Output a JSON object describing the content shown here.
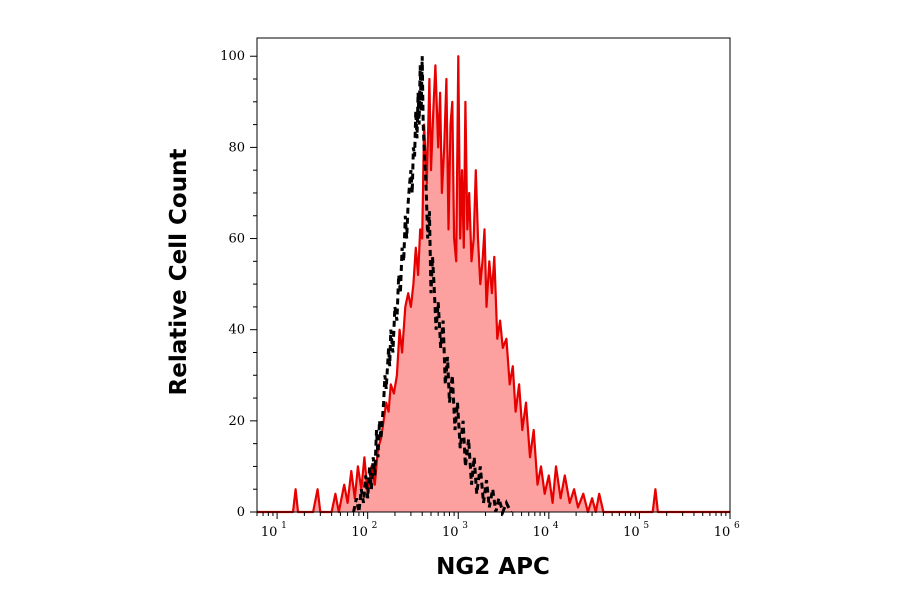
{
  "chart_data": {
    "type": "area",
    "xlabel": "NG2 APC",
    "ylabel": "Relative Cell Count",
    "xscale": "log",
    "xlim": [
      6,
      1000000
    ],
    "ylim": [
      0,
      104
    ],
    "x_ticks": [
      {
        "base": "10",
        "exp": "1",
        "value": 10
      },
      {
        "base": "10",
        "exp": "2",
        "value": 100
      },
      {
        "base": "10",
        "exp": "3",
        "value": 1000
      },
      {
        "base": "10",
        "exp": "4",
        "value": 10000
      },
      {
        "base": "10",
        "exp": "5",
        "value": 100000
      },
      {
        "base": "10",
        "exp": "6",
        "value": 1000000
      }
    ],
    "y_ticks": [
      "0",
      "20",
      "40",
      "60",
      "80",
      "100"
    ],
    "grid": false,
    "legend": "none",
    "series": [
      {
        "style": "filled-solid",
        "line_color": "#e60000",
        "fill_color": "#fca0a0",
        "points": [
          [
            6,
            0
          ],
          [
            12,
            0
          ],
          [
            15,
            0
          ],
          [
            16,
            5
          ],
          [
            17,
            0
          ],
          [
            25,
            0
          ],
          [
            28,
            5
          ],
          [
            30,
            0
          ],
          [
            40,
            0
          ],
          [
            44,
            4
          ],
          [
            48,
            0
          ],
          [
            55,
            6
          ],
          [
            60,
            2
          ],
          [
            66,
            9
          ],
          [
            72,
            3
          ],
          [
            78,
            10
          ],
          [
            85,
            5
          ],
          [
            92,
            12
          ],
          [
            100,
            4
          ],
          [
            110,
            10
          ],
          [
            120,
            6
          ],
          [
            130,
            14
          ],
          [
            140,
            16
          ],
          [
            150,
            20
          ],
          [
            160,
            24
          ],
          [
            170,
            22
          ],
          [
            180,
            28
          ],
          [
            195,
            26
          ],
          [
            210,
            30
          ],
          [
            225,
            40
          ],
          [
            240,
            35
          ],
          [
            260,
            45
          ],
          [
            280,
            48
          ],
          [
            300,
            45
          ],
          [
            320,
            50
          ],
          [
            340,
            58
          ],
          [
            360,
            52
          ],
          [
            380,
            62
          ],
          [
            400,
            60
          ],
          [
            420,
            85
          ],
          [
            450,
            72
          ],
          [
            480,
            95
          ],
          [
            500,
            75
          ],
          [
            530,
            88
          ],
          [
            560,
            98
          ],
          [
            600,
            80
          ],
          [
            630,
            92
          ],
          [
            660,
            70
          ],
          [
            700,
            80
          ],
          [
            740,
            95
          ],
          [
            780,
            62
          ],
          [
            820,
            85
          ],
          [
            860,
            90
          ],
          [
            900,
            60
          ],
          [
            950,
            55
          ],
          [
            1000,
            100
          ],
          [
            1050,
            60
          ],
          [
            1100,
            75
          ],
          [
            1150,
            58
          ],
          [
            1200,
            90
          ],
          [
            1260,
            62
          ],
          [
            1320,
            70
          ],
          [
            1400,
            55
          ],
          [
            1480,
            60
          ],
          [
            1560,
            75
          ],
          [
            1650,
            60
          ],
          [
            1750,
            50
          ],
          [
            1850,
            55
          ],
          [
            1950,
            62
          ],
          [
            2050,
            45
          ],
          [
            2200,
            55
          ],
          [
            2350,
            48
          ],
          [
            2500,
            56
          ],
          [
            2700,
            38
          ],
          [
            2900,
            42
          ],
          [
            3100,
            36
          ],
          [
            3400,
            38
          ],
          [
            3700,
            28
          ],
          [
            4000,
            32
          ],
          [
            4300,
            22
          ],
          [
            4700,
            28
          ],
          [
            5100,
            18
          ],
          [
            5600,
            24
          ],
          [
            6200,
            12
          ],
          [
            6800,
            18
          ],
          [
            7500,
            6
          ],
          [
            8200,
            10
          ],
          [
            9000,
            4
          ],
          [
            10000,
            8
          ],
          [
            11000,
            2
          ],
          [
            12000,
            10
          ],
          [
            13500,
            3
          ],
          [
            15000,
            8
          ],
          [
            17000,
            2
          ],
          [
            19000,
            5
          ],
          [
            21000,
            1
          ],
          [
            24000,
            4
          ],
          [
            27000,
            0
          ],
          [
            30000,
            3
          ],
          [
            33000,
            0
          ],
          [
            36000,
            4
          ],
          [
            40000,
            0
          ],
          [
            50000,
            0
          ],
          [
            140000,
            0
          ],
          [
            150000,
            5
          ],
          [
            160000,
            0
          ],
          [
            1000000,
            0
          ]
        ]
      },
      {
        "style": "dashed",
        "line_color": "#000000",
        "points": [
          [
            70,
            0
          ],
          [
            75,
            3
          ],
          [
            80,
            0
          ],
          [
            85,
            5
          ],
          [
            90,
            2
          ],
          [
            95,
            8
          ],
          [
            100,
            3
          ],
          [
            105,
            10
          ],
          [
            110,
            5
          ],
          [
            115,
            12
          ],
          [
            120,
            8
          ],
          [
            125,
            18
          ],
          [
            130,
            12
          ],
          [
            135,
            20
          ],
          [
            140,
            16
          ],
          [
            150,
            24
          ],
          [
            155,
            30
          ],
          [
            160,
            27
          ],
          [
            170,
            36
          ],
          [
            175,
            32
          ],
          [
            180,
            40
          ],
          [
            190,
            35
          ],
          [
            200,
            45
          ],
          [
            210,
            42
          ],
          [
            220,
            52
          ],
          [
            230,
            48
          ],
          [
            240,
            58
          ],
          [
            250,
            55
          ],
          [
            260,
            65
          ],
          [
            270,
            60
          ],
          [
            280,
            68
          ],
          [
            290,
            72
          ],
          [
            300,
            75
          ],
          [
            310,
            70
          ],
          [
            320,
            80
          ],
          [
            330,
            78
          ],
          [
            340,
            88
          ],
          [
            350,
            82
          ],
          [
            360,
            92
          ],
          [
            370,
            85
          ],
          [
            380,
            98
          ],
          [
            390,
            88
          ],
          [
            400,
            100
          ],
          [
            410,
            85
          ],
          [
            420,
            80
          ],
          [
            440,
            72
          ],
          [
            460,
            60
          ],
          [
            480,
            66
          ],
          [
            500,
            48
          ],
          [
            520,
            56
          ],
          [
            540,
            50
          ],
          [
            570,
            40
          ],
          [
            600,
            46
          ],
          [
            640,
            36
          ],
          [
            680,
            42
          ],
          [
            720,
            28
          ],
          [
            760,
            34
          ],
          [
            800,
            24
          ],
          [
            860,
            30
          ],
          [
            920,
            18
          ],
          [
            980,
            24
          ],
          [
            1050,
            14
          ],
          [
            1130,
            20
          ],
          [
            1200,
            10
          ],
          [
            1300,
            16
          ],
          [
            1400,
            6
          ],
          [
            1500,
            12
          ],
          [
            1600,
            4
          ],
          [
            1750,
            10
          ],
          [
            1900,
            2
          ],
          [
            2050,
            7
          ],
          [
            2200,
            1
          ],
          [
            2400,
            5
          ],
          [
            2600,
            0
          ],
          [
            2800,
            3
          ],
          [
            3100,
            0
          ],
          [
            3400,
            2
          ],
          [
            3800,
            0
          ]
        ]
      }
    ]
  }
}
